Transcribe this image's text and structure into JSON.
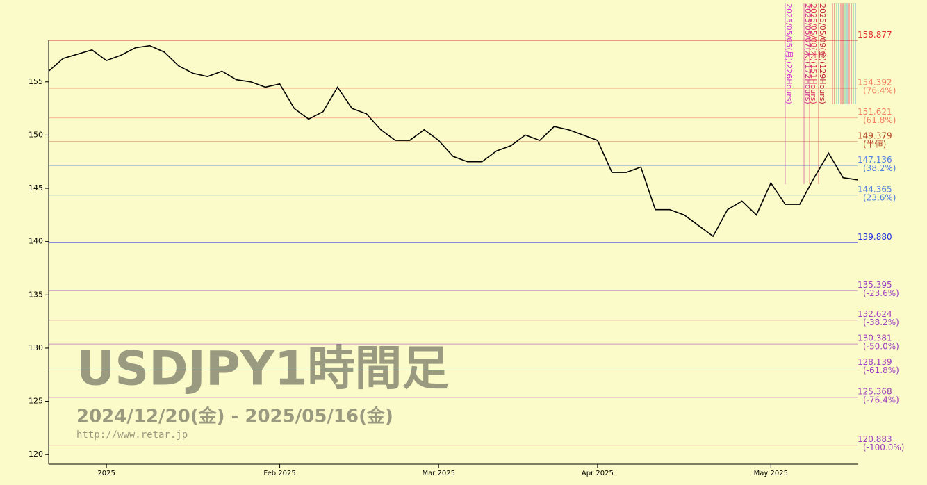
{
  "chart_data": {
    "type": "line",
    "title": "USDJPY1時間足",
    "subtitle": "2024/12/20(金) - 2025/05/16(金)",
    "source": "http://www.retar.jp",
    "categories": [
      null,
      null,
      null,
      null,
      "2025",
      null,
      null,
      null,
      null,
      null,
      null,
      null,
      null,
      null,
      null,
      null,
      "Feb 2025",
      null,
      null,
      null,
      null,
      null,
      null,
      null,
      null,
      null,
      null,
      "Mar 2025",
      null,
      null,
      null,
      null,
      null,
      null,
      null,
      null,
      null,
      null,
      "Apr 2025",
      null,
      null,
      null,
      null,
      null,
      null,
      null,
      null,
      null,
      null,
      null,
      "May 2025",
      null,
      null,
      null,
      null,
      null,
      null
    ],
    "series": [
      {
        "color": "#000000",
        "values": [
          156.0,
          157.2,
          157.6,
          158.0,
          157.0,
          157.5,
          158.2,
          158.4,
          157.8,
          156.5,
          155.8,
          155.5,
          156.0,
          155.2,
          155.0,
          154.5,
          154.8,
          152.5,
          151.5,
          152.2,
          154.5,
          152.5,
          152.0,
          150.5,
          149.5,
          149.5,
          150.5,
          149.5,
          148.0,
          147.5,
          147.5,
          148.5,
          149.0,
          150.0,
          149.5,
          150.8,
          150.5,
          150.0,
          149.5,
          146.5,
          146.5,
          147.0,
          143.0,
          143.0,
          142.5,
          141.5,
          140.5,
          143.0,
          143.8,
          142.5,
          145.5,
          143.5,
          143.5,
          146.0,
          148.3,
          146.0,
          145.8
        ]
      }
    ],
    "ylim": [
      119.1,
      158.9
    ],
    "yticks": [
      120,
      125,
      130,
      135,
      140,
      145,
      150,
      155
    ],
    "levels": [
      {
        "value": 158.877,
        "color": "#e03030"
      },
      {
        "value": 154.392,
        "ratio": "(76.4%)",
        "color": "#f08060"
      },
      {
        "value": 151.621,
        "ratio": "(61.8%)",
        "color": "#f08060"
      },
      {
        "value": 149.379,
        "ratio": "(半値)",
        "color": "#b04020"
      },
      {
        "value": 147.136,
        "ratio": "(38.2%)",
        "color": "#5080e0"
      },
      {
        "value": 144.365,
        "ratio": "(23.6%)",
        "color": "#5080e0"
      },
      {
        "value": 139.88,
        "label": "139.880",
        "color": "#2030e0"
      },
      {
        "value": 135.395,
        "ratio": "(-23.6%)",
        "color": "#a040c0"
      },
      {
        "value": 132.624,
        "ratio": "(-38.2%)",
        "color": "#a040c0"
      },
      {
        "value": 130.381,
        "ratio": "(-50.0%)",
        "color": "#a040c0"
      },
      {
        "value": 128.139,
        "ratio": "(-61.8%)",
        "color": "#a040c0"
      },
      {
        "value": 125.368,
        "ratio": "(-76.4%)",
        "color": "#a040c0"
      },
      {
        "value": 120.883,
        "ratio": "(-100.0%)",
        "color": "#a040c0"
      }
    ],
    "annotations": [
      {
        "text": "2025/05/05(月)(226Hours)",
        "color": "#d030d0"
      },
      {
        "text": "2025/05/07(水)(172Hours)",
        "color": "#d03090"
      },
      {
        "text": "2025/05/08(木)(151Hours)",
        "color": "#e03060"
      },
      {
        "text": "2025/05/09(金)(129Hours)",
        "color": "#c02040"
      }
    ]
  }
}
